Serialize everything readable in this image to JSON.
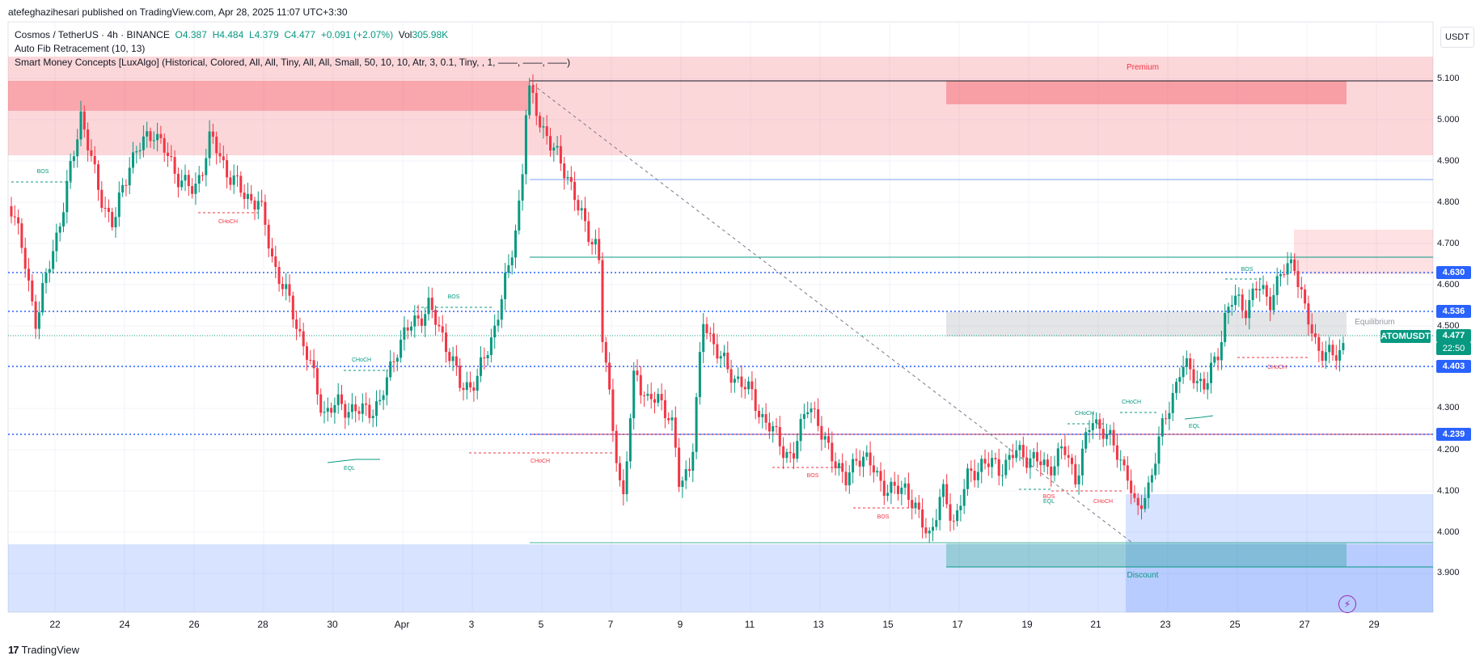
{
  "header": {
    "published": "atefeghazihesari published on TradingView.com, Apr 28, 2025 11:07 UTC+3:30",
    "symbol_desc": "Cosmos / TetherUS · 4h · BINANCE",
    "ohlc": {
      "o": "O4.387",
      "h": "H4.484",
      "l": "L4.379",
      "c": "C4.477",
      "chg": "+0.091 (+2.07%)",
      "vol_label": "Vol",
      "vol": "305.98K"
    },
    "indicator1": "Auto Fib Retracement (10, 13)",
    "indicator2": "Smart Money Concepts [LuxAlgo] (Historical, Colored, All, All, Tiny, All, All, Small, 50, 10, 10, Atr, 3, 0.1, Tiny, , 1, ——, ——, ——)"
  },
  "currency": "USDT",
  "price_axis": {
    "ticks": [
      "5.100",
      "5.000",
      "4.900",
      "4.800",
      "4.700",
      "4.600",
      "4.500",
      "4.300",
      "4.200",
      "4.100",
      "4.000",
      "3.900"
    ]
  },
  "price_tags": {
    "p4630": "4.630",
    "p4536": "4.536",
    "p4477": "4.477",
    "countdown": "22:50",
    "p4403": "4.403",
    "p4239": "4.239",
    "symbol": "ATOMUSDT"
  },
  "date_axis": {
    "ticks": [
      "22",
      "24",
      "26",
      "28",
      "30",
      "Apr",
      "3",
      "5",
      "7",
      "9",
      "11",
      "13",
      "15",
      "17",
      "19",
      "21",
      "23",
      "25",
      "27",
      "29"
    ]
  },
  "zones": {
    "premium": "Premium",
    "equilibrium": "Equilibrium",
    "discount": "Discount"
  },
  "smc_labels": [
    {
      "text": "BOS",
      "color": "#089981"
    },
    {
      "text": "CHoCH",
      "color": "#f23645"
    },
    {
      "text": "BOS",
      "color": "#089981"
    },
    {
      "text": "CHoCH",
      "color": "#089981"
    },
    {
      "text": "EQL",
      "color": "#089981"
    },
    {
      "text": "CHoCH",
      "color": "#f23645"
    },
    {
      "text": "BOS",
      "color": "#f23645"
    },
    {
      "text": "BOS",
      "color": "#f23645"
    },
    {
      "text": "CHoCH",
      "color": "#089981"
    },
    {
      "text": "CHoCH",
      "color": "#089981"
    },
    {
      "text": "BOS",
      "color": "#f23645"
    },
    {
      "text": "EQL",
      "color": "#089981"
    },
    {
      "text": "CHoCH",
      "color": "#f23645"
    },
    {
      "text": "EQL",
      "color": "#089981"
    },
    {
      "text": "BOS",
      "color": "#089981"
    },
    {
      "text": "CHoCH",
      "color": "#f23645"
    }
  ],
  "colors": {
    "bull": "#089981",
    "bear": "#f23645",
    "level": "#2962ff"
  },
  "brand": "TradingView"
}
